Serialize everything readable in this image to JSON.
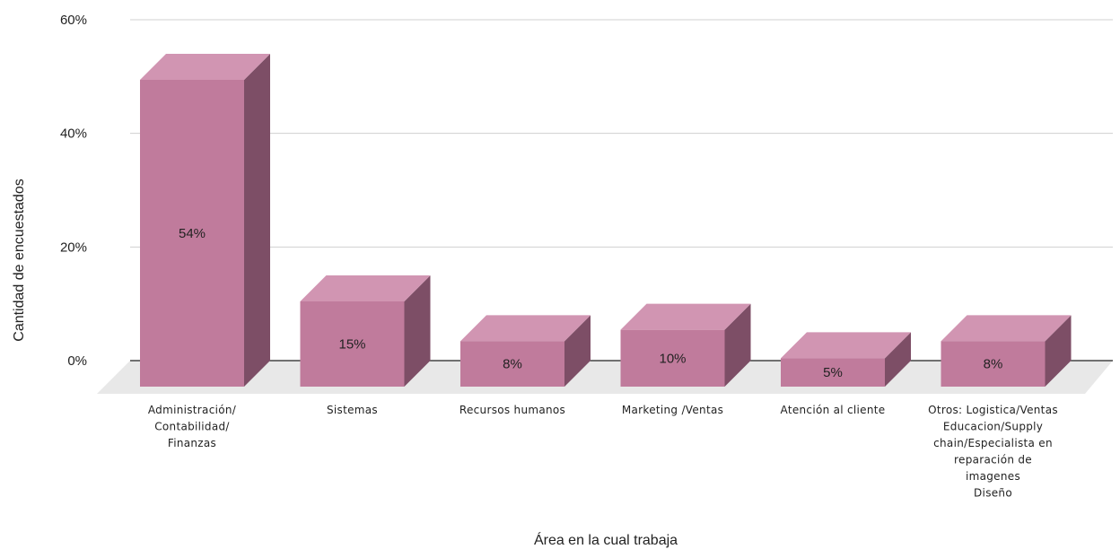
{
  "chart_data": {
    "type": "bar",
    "style": "3d",
    "title": "",
    "xlabel": "Área en la cual trabaja",
    "ylabel": "Cantidad de encuestados",
    "ylim": [
      0,
      60
    ],
    "yticks": [
      "0%",
      "20%",
      "40%",
      "60%"
    ],
    "grid": true,
    "legend": "none",
    "categories": [
      [
        "Administración/",
        "Contabilidad/",
        "Finanzas"
      ],
      [
        "Sistemas"
      ],
      [
        "Recursos humanos"
      ],
      [
        "Marketing /Ventas"
      ],
      [
        "Atención al cliente"
      ],
      [
        "Otros: Logistica/Ventas",
        "Educacion/Supply",
        "chain/Especialista en",
        "reparación de",
        "imagenes",
        "Diseño"
      ]
    ],
    "values": [
      54,
      15,
      8,
      10,
      5,
      8
    ],
    "data_labels": [
      "54%",
      "15%",
      "8%",
      "10%",
      "5%",
      "8%"
    ],
    "colors": {
      "front": "#c07b9c",
      "top": "#d195b2",
      "side": "#7d4e66",
      "floor": "#e8e8e8",
      "grid": "#d0d0d0",
      "axis": "#222222"
    }
  }
}
